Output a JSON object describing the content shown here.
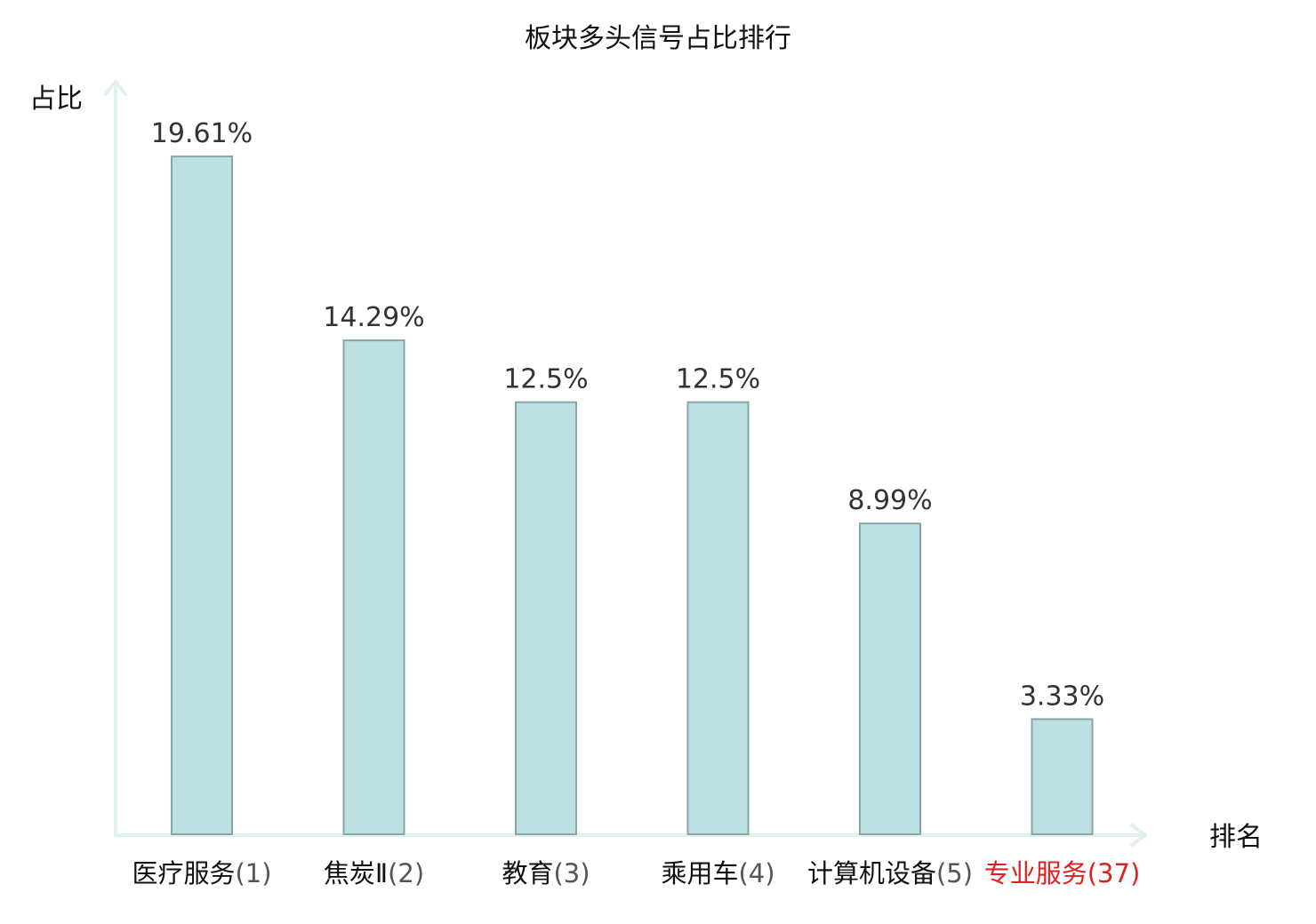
{
  "chart_data": {
    "type": "bar",
    "title": "板块多头信号占比排行",
    "xlabel": "排名",
    "ylabel": "占比",
    "categories": [
      {
        "name": "医疗服务",
        "rank": "(1)",
        "highlight": false
      },
      {
        "name": "焦炭Ⅱ",
        "rank": "(2)",
        "highlight": false
      },
      {
        "name": "教育",
        "rank": "(3)",
        "highlight": false
      },
      {
        "name": "乘用车",
        "rank": "(4)",
        "highlight": false
      },
      {
        "name": "计算机设备",
        "rank": "(5)",
        "highlight": false
      },
      {
        "name": "专业服务",
        "rank": "(37)",
        "highlight": true
      }
    ],
    "values": [
      19.61,
      14.29,
      12.5,
      12.5,
      8.99,
      3.33
    ],
    "value_labels": [
      "19.61%",
      "14.29%",
      "12.5%",
      "12.5%",
      "8.99%",
      "3.33%"
    ],
    "ylim": [
      0,
      21
    ],
    "grid": false,
    "legend": "none",
    "colors": {
      "bar_fill": "#bde0e3",
      "bar_stroke": "#86a6aa",
      "axis": "#e0f2ef",
      "highlight_text": "#e02020"
    }
  }
}
